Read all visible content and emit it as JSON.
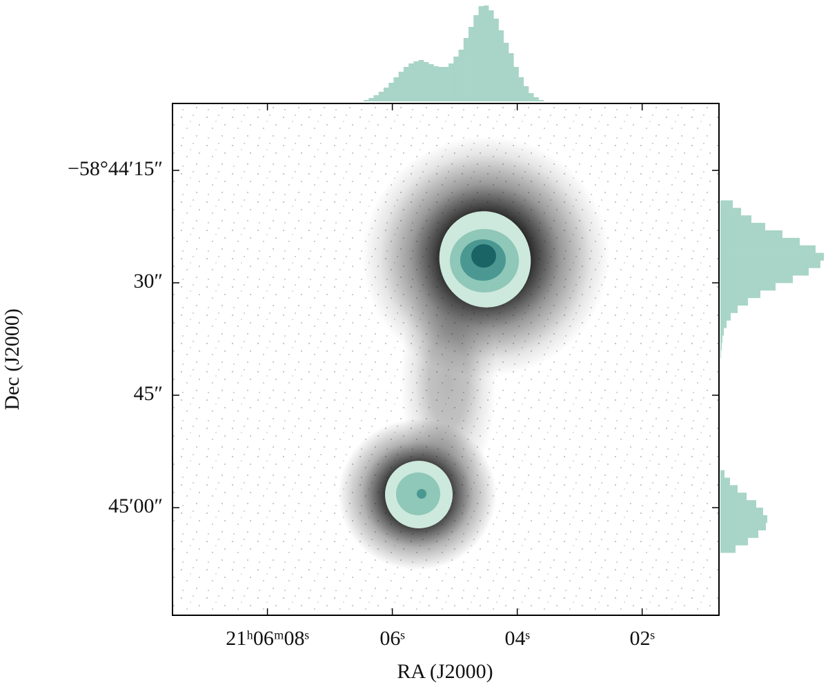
{
  "chart_data": {
    "type": "scatter",
    "xlabel": "RA (J2000)",
    "ylabel": "Dec (J2000)",
    "xlim": [
      9.52,
      0.77
    ],
    "xticks": [
      {
        "value": 8,
        "label": "21ʰ06ᵐ08ˢ"
      },
      {
        "value": 6,
        "label": "06ˢ"
      },
      {
        "value": 4,
        "label": "04ˢ"
      },
      {
        "value": 2,
        "label": "02ˢ"
      }
    ],
    "ylim": [
      6.07,
      74.36
    ],
    "yticks": [
      {
        "value": 15,
        "label": "−58°44′15″"
      },
      {
        "value": 30,
        "label": "30″"
      },
      {
        "value": 45,
        "label": "45″"
      },
      {
        "value": 60,
        "label": "45′00″"
      }
    ],
    "marginal_x": {
      "type": "histogram",
      "color": "#a8d5c7",
      "bins": [
        6.46,
        6.38,
        6.3,
        6.22,
        6.14,
        6.06,
        5.98,
        5.9,
        5.82,
        5.74,
        5.66,
        5.58,
        5.5,
        5.42,
        5.34,
        5.26,
        5.18,
        5.1,
        5.02,
        4.94,
        4.86,
        4.78,
        4.7,
        4.62,
        4.54,
        4.46,
        4.38,
        4.3,
        4.22,
        4.14,
        4.06,
        3.98,
        3.9,
        3.82,
        3.74,
        3.66,
        3.58
      ],
      "counts": [
        2,
        5,
        9,
        14,
        20,
        27,
        35,
        43,
        50,
        55,
        58,
        60,
        57,
        54,
        51,
        50,
        50,
        55,
        65,
        75,
        92,
        108,
        125,
        138,
        139,
        132,
        120,
        103,
        85,
        70,
        50,
        35,
        22,
        12,
        6,
        2
      ]
    },
    "marginal_y": {
      "type": "histogram",
      "color": "#a8d5c7",
      "bins": [
        19,
        20,
        21,
        22,
        23,
        24,
        25,
        26,
        27,
        28,
        29,
        30,
        31,
        32,
        33,
        34,
        35,
        36,
        37,
        38,
        39,
        40,
        41,
        42,
        43,
        44,
        45,
        46,
        47,
        48,
        49,
        50,
        51,
        52,
        53,
        54,
        55,
        56,
        57,
        58,
        59,
        60,
        61,
        62,
        63,
        64,
        65,
        66
      ],
      "counts": [
        18,
        30,
        45,
        65,
        90,
        115,
        138,
        150,
        145,
        128,
        105,
        80,
        58,
        40,
        25,
        15,
        9,
        5,
        3,
        2,
        1,
        0,
        0,
        0,
        0,
        0,
        0,
        0,
        0,
        0,
        0,
        0,
        0,
        0,
        0,
        0,
        6,
        14,
        25,
        38,
        52,
        62,
        68,
        66,
        55,
        40,
        22
      ]
    }
  }
}
